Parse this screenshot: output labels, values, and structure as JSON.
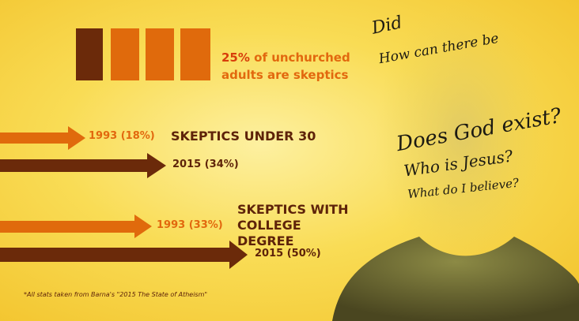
{
  "headline": {
    "highlight": "25%",
    "text": "of unchurched adults are skeptics"
  },
  "groups": [
    {
      "title": "SKEPTICS UNDER 30",
      "rows": [
        "1993 (18%)",
        "2015 (34%)"
      ]
    },
    {
      "title": "SKEPTICS WITH COLLEGE DEGREE",
      "rows": [
        "1993 (33%)",
        "2015 (50%)"
      ]
    }
  ],
  "footnote": "*All stats taken from Barna's \"2015 The State of Atheism\"",
  "handwriting": [
    "Did",
    "How can there be",
    "Does God exist?",
    "Who is Jesus?",
    "What do I believe?"
  ]
}
